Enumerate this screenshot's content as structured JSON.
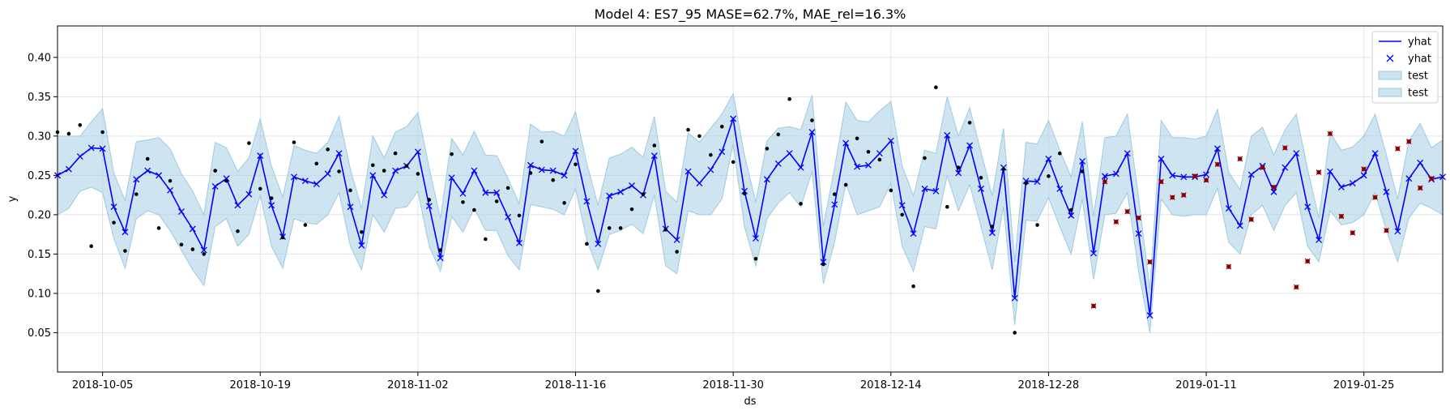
{
  "chart_data": {
    "type": "line",
    "title": "Model 4: ES7_95 MASE=62.7%, MAE_rel=16.3%",
    "xlabel": "ds",
    "ylabel": "y",
    "x_start": "2018-10-01",
    "x_end": "2019-01-31",
    "xlim": [
      "2018-10-01",
      "2019-02-01"
    ],
    "ylim": [
      0.0,
      0.44
    ],
    "x_ticks": [
      "2018-10-05",
      "2018-10-19",
      "2018-11-02",
      "2018-11-16",
      "2018-11-30",
      "2018-12-14",
      "2018-12-28",
      "2019-01-11",
      "2019-01-25"
    ],
    "y_ticks": [
      "0.05",
      "0.10",
      "0.15",
      "0.20",
      "0.25",
      "0.30",
      "0.35",
      "0.40"
    ],
    "grid": true,
    "legend_position": "top-right",
    "colors": {
      "forecast": "#0000ff",
      "band_fill": "#a6cee3",
      "band_stroke": "#9ecae1",
      "observed": "#000000",
      "test_marker": "#cc0000"
    },
    "legend": [
      {
        "label": "yhat",
        "kind": "line"
      },
      {
        "label": "yhat",
        "kind": "marker"
      },
      {
        "label": "test",
        "kind": "band"
      },
      {
        "label": "test",
        "kind": "band"
      }
    ],
    "series": [
      {
        "name": "yhat",
        "y": [
          0.25,
          0.258,
          0.274,
          0.285,
          0.284,
          0.21,
          0.178,
          0.245,
          0.256,
          0.25,
          0.231,
          0.204,
          0.182,
          0.155,
          0.236,
          0.246,
          0.212,
          0.226,
          0.275,
          0.212,
          0.172,
          0.248,
          0.243,
          0.239,
          0.252,
          0.278,
          0.21,
          0.161,
          0.25,
          0.225,
          0.256,
          0.262,
          0.28,
          0.211,
          0.145,
          0.247,
          0.227,
          0.256,
          0.228,
          0.228,
          0.197,
          0.164,
          0.263,
          0.257,
          0.256,
          0.25,
          0.281,
          0.217,
          0.163,
          0.224,
          0.229,
          0.237,
          0.225,
          0.275,
          0.182,
          0.168,
          0.255,
          0.24,
          0.257,
          0.28,
          0.322,
          0.23,
          0.17,
          0.245,
          0.265,
          0.278,
          0.26,
          0.305,
          0.14,
          0.213,
          0.291,
          0.261,
          0.263,
          0.278,
          0.294,
          0.212,
          0.176,
          0.233,
          0.23,
          0.301,
          0.253,
          0.288,
          0.233,
          0.177,
          0.26,
          0.094,
          0.243,
          0.242,
          0.271,
          0.233,
          0.199,
          0.268,
          0.151,
          0.249,
          0.252,
          0.278,
          0.176,
          0.072,
          0.271,
          0.25,
          0.248,
          0.248,
          0.251,
          0.284,
          0.208,
          0.186,
          0.251,
          0.262,
          0.229,
          0.26,
          0.278,
          0.21,
          0.168,
          0.255,
          0.235,
          0.24,
          0.25,
          0.278,
          0.229,
          0.179,
          0.246,
          0.266,
          0.245,
          0.248
        ]
      },
      {
        "name": "test",
        "lower": [
          0.2,
          0.208,
          0.23,
          0.235,
          0.228,
          0.17,
          0.132,
          0.195,
          0.205,
          0.2,
          0.18,
          0.155,
          0.13,
          0.11,
          0.185,
          0.195,
          0.16,
          0.175,
          0.225,
          0.16,
          0.132,
          0.195,
          0.19,
          0.188,
          0.2,
          0.228,
          0.16,
          0.13,
          0.2,
          0.178,
          0.208,
          0.21,
          0.23,
          0.16,
          0.128,
          0.198,
          0.178,
          0.208,
          0.18,
          0.18,
          0.148,
          0.13,
          0.213,
          0.21,
          0.207,
          0.2,
          0.233,
          0.168,
          0.13,
          0.175,
          0.18,
          0.188,
          0.176,
          0.225,
          0.135,
          0.125,
          0.205,
          0.2,
          0.2,
          0.22,
          0.29,
          0.185,
          0.135,
          0.195,
          0.215,
          0.228,
          0.21,
          0.255,
          0.112,
          0.165,
          0.24,
          0.2,
          0.205,
          0.21,
          0.24,
          0.16,
          0.128,
          0.185,
          0.182,
          0.25,
          0.205,
          0.238,
          0.185,
          0.13,
          0.21,
          0.06,
          0.193,
          0.192,
          0.222,
          0.185,
          0.15,
          0.22,
          0.118,
          0.2,
          0.202,
          0.228,
          0.128,
          0.05,
          0.22,
          0.2,
          0.198,
          0.2,
          0.2,
          0.234,
          0.165,
          0.15,
          0.2,
          0.212,
          0.18,
          0.212,
          0.228,
          0.16,
          0.14,
          0.205,
          0.187,
          0.19,
          0.2,
          0.228,
          0.18,
          0.14,
          0.196,
          0.215,
          0.208,
          0.2
        ],
        "upper": [
          0.3,
          0.3,
          0.3,
          0.318,
          0.335,
          0.253,
          0.218,
          0.293,
          0.295,
          0.298,
          0.284,
          0.252,
          0.23,
          0.2,
          0.292,
          0.285,
          0.255,
          0.272,
          0.322,
          0.262,
          0.222,
          0.288,
          0.282,
          0.278,
          0.292,
          0.325,
          0.258,
          0.208,
          0.3,
          0.272,
          0.305,
          0.312,
          0.33,
          0.26,
          0.195,
          0.297,
          0.276,
          0.306,
          0.276,
          0.275,
          0.246,
          0.214,
          0.315,
          0.305,
          0.306,
          0.3,
          0.331,
          0.265,
          0.212,
          0.272,
          0.277,
          0.286,
          0.273,
          0.325,
          0.23,
          0.216,
          0.304,
          0.292,
          0.31,
          0.328,
          0.354,
          0.276,
          0.216,
          0.294,
          0.31,
          0.312,
          0.308,
          0.352,
          0.185,
          0.26,
          0.343,
          0.32,
          0.318,
          0.332,
          0.344,
          0.262,
          0.224,
          0.282,
          0.278,
          0.35,
          0.3,
          0.336,
          0.28,
          0.224,
          0.31,
          0.14,
          0.292,
          0.29,
          0.32,
          0.282,
          0.248,
          0.318,
          0.198,
          0.298,
          0.3,
          0.328,
          0.222,
          0.105,
          0.32,
          0.298,
          0.298,
          0.296,
          0.3,
          0.334,
          0.254,
          0.232,
          0.3,
          0.311,
          0.276,
          0.308,
          0.328,
          0.258,
          0.196,
          0.304,
          0.282,
          0.286,
          0.3,
          0.328,
          0.276,
          0.22,
          0.294,
          0.316,
          0.285,
          0.295
        ]
      }
    ],
    "observed": [
      [
        0,
        0.305
      ],
      [
        1,
        0.303
      ],
      [
        2,
        0.314
      ],
      [
        3,
        0.16
      ],
      [
        4,
        0.305
      ],
      [
        5,
        0.19
      ],
      [
        6,
        0.154
      ],
      [
        7,
        0.226
      ],
      [
        8,
        0.271
      ],
      [
        9,
        0.183
      ],
      [
        10,
        0.243
      ],
      [
        11,
        0.162
      ],
      [
        12,
        0.156
      ],
      [
        13,
        0.15
      ],
      [
        14,
        0.256
      ],
      [
        15,
        0.243
      ],
      [
        16,
        0.179
      ],
      [
        17,
        0.291
      ],
      [
        18,
        0.233
      ],
      [
        19,
        0.221
      ],
      [
        20,
        0.171
      ],
      [
        21,
        0.292
      ],
      [
        22,
        0.187
      ],
      [
        23,
        0.265
      ],
      [
        24,
        0.283
      ],
      [
        25,
        0.255
      ],
      [
        26,
        0.231
      ],
      [
        27,
        0.178
      ],
      [
        28,
        0.263
      ],
      [
        29,
        0.256
      ],
      [
        30,
        0.278
      ],
      [
        31,
        0.262
      ],
      [
        32,
        0.252
      ],
      [
        33,
        0.219
      ],
      [
        34,
        0.155
      ],
      [
        35,
        0.277
      ],
      [
        36,
        0.216
      ],
      [
        37,
        0.206
      ],
      [
        38,
        0.169
      ],
      [
        39,
        0.217
      ],
      [
        40,
        0.234
      ],
      [
        41,
        0.199
      ],
      [
        42,
        0.253
      ],
      [
        43,
        0.293
      ],
      [
        44,
        0.244
      ],
      [
        45,
        0.215
      ],
      [
        46,
        0.264
      ],
      [
        47,
        0.163
      ],
      [
        48,
        0.103
      ],
      [
        49,
        0.183
      ],
      [
        50,
        0.183
      ],
      [
        51,
        0.207
      ],
      [
        52,
        0.226
      ],
      [
        53,
        0.288
      ],
      [
        54,
        0.181
      ],
      [
        55,
        0.153
      ],
      [
        56,
        0.308
      ],
      [
        57,
        0.3
      ],
      [
        58,
        0.276
      ],
      [
        59,
        0.312
      ],
      [
        60,
        0.267
      ],
      [
        61,
        0.227
      ],
      [
        62,
        0.144
      ],
      [
        63,
        0.284
      ],
      [
        64,
        0.302
      ],
      [
        65,
        0.347
      ],
      [
        66,
        0.214
      ],
      [
        67,
        0.32
      ],
      [
        68,
        0.137
      ],
      [
        69,
        0.226
      ],
      [
        70,
        0.238
      ],
      [
        71,
        0.297
      ],
      [
        72,
        0.28
      ],
      [
        73,
        0.27
      ],
      [
        74,
        0.231
      ],
      [
        75,
        0.2
      ],
      [
        76,
        0.109
      ],
      [
        77,
        0.272
      ],
      [
        78,
        0.362
      ],
      [
        79,
        0.21
      ],
      [
        80,
        0.26
      ],
      [
        81,
        0.317
      ],
      [
        82,
        0.247
      ],
      [
        83,
        0.185
      ],
      [
        84,
        0.258
      ],
      [
        85,
        0.05
      ],
      [
        86,
        0.24
      ],
      [
        87,
        0.187
      ],
      [
        88,
        0.249
      ],
      [
        89,
        0.278
      ],
      [
        90,
        0.206
      ],
      [
        91,
        0.255
      ]
    ],
    "test_points": [
      [
        92,
        0.084
      ],
      [
        93,
        0.242
      ],
      [
        94,
        0.191
      ],
      [
        95,
        0.204
      ],
      [
        96,
        0.196
      ],
      [
        97,
        0.14
      ],
      [
        98,
        0.242
      ],
      [
        99,
        0.222
      ],
      [
        100,
        0.225
      ],
      [
        101,
        0.249
      ],
      [
        102,
        0.244
      ],
      [
        103,
        0.264
      ],
      [
        104,
        0.134
      ],
      [
        105,
        0.271
      ],
      [
        106,
        0.194
      ],
      [
        107,
        0.26
      ],
      [
        108,
        0.235
      ],
      [
        109,
        0.285
      ],
      [
        110,
        0.108
      ],
      [
        111,
        0.141
      ],
      [
        112,
        0.254
      ],
      [
        113,
        0.303
      ],
      [
        114,
        0.198
      ],
      [
        115,
        0.177
      ],
      [
        116,
        0.258
      ],
      [
        117,
        0.222
      ],
      [
        118,
        0.18
      ],
      [
        119,
        0.284
      ],
      [
        120,
        0.293
      ],
      [
        121,
        0.234
      ],
      [
        122,
        0.246
      ]
    ]
  }
}
